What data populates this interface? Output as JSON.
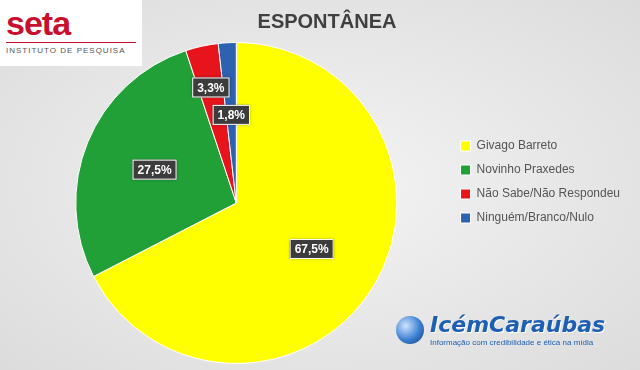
{
  "chart_data": {
    "type": "pie",
    "title": "ESPONTÂNEA",
    "categories": [
      "Givago Barreto",
      "Novinho Praxedes",
      "Não Sabe/Não Respondeu",
      "Ninguém/Branco/Nulo"
    ],
    "values": [
      67.5,
      27.5,
      3.3,
      1.8
    ],
    "value_labels": [
      "67,5%",
      "27,5%",
      "3,3%",
      "1,8%"
    ],
    "colors": [
      "#ffff00",
      "#21a038",
      "#e8141c",
      "#2e62b0"
    ],
    "data_labels": true,
    "legend": "right",
    "annotations": [
      "seta",
      "INSTITUTO DE PESQUISA",
      "IcémCaraúbas",
      "Informação com credibilidade e ética na mídia"
    ]
  }
}
